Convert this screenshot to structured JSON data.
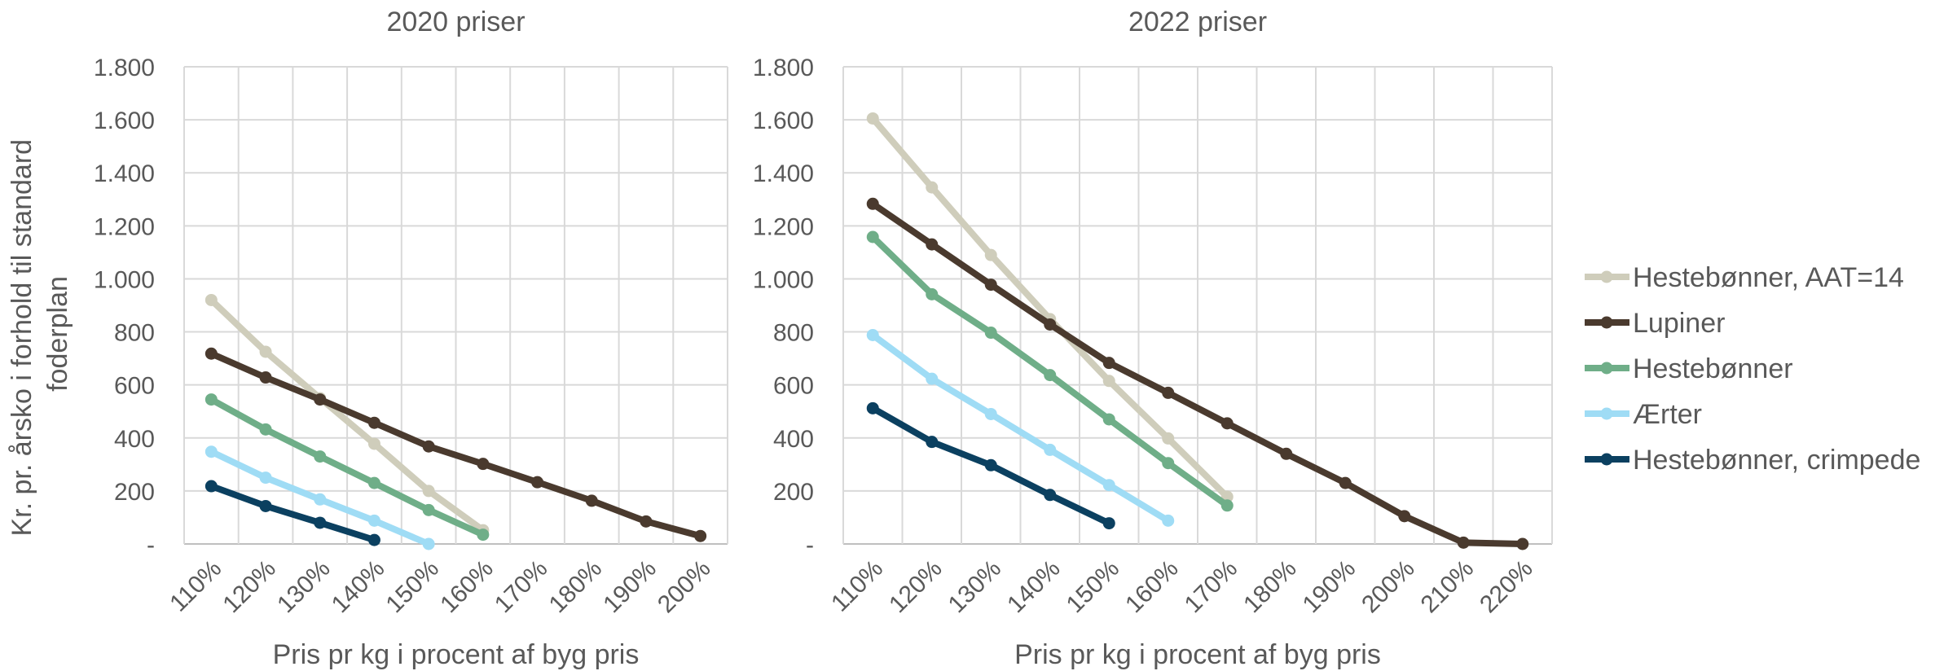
{
  "y_axis_title": "Kr. pr. årsko i forhold til standard foderplan",
  "y_axis_title_lines": [
    "Kr. pr. årsko i forhold til standard",
    "foderplan"
  ],
  "chart_data": [
    {
      "type": "line",
      "title": "2020 priser",
      "xlabel": "Pris pr kg i procent af byg pris",
      "ylabel": "Kr. pr. årsko i forhold til standard foderplan",
      "x_tick_labels": [
        "110%",
        "120%",
        "130%",
        "140%",
        "150%",
        "160%",
        "170%",
        "180%",
        "190%",
        "200%"
      ],
      "y_tick_labels": [
        "-",
        "200",
        "400",
        "600",
        "800",
        "1.000",
        "1.200",
        "1.400",
        "1.600",
        "1.800"
      ],
      "xlim": [
        105,
        205
      ],
      "ylim": [
        0,
        1800
      ],
      "grid": true,
      "series": [
        {
          "name": "Hestebønner, AAT=14",
          "color": "#cfcdbb",
          "points": [
            [
              110,
              920
            ],
            [
              120,
              725
            ],
            [
              130,
              550
            ],
            [
              140,
              378
            ],
            [
              150,
              200
            ],
            [
              160,
              52
            ]
          ]
        },
        {
          "name": "Lupiner",
          "color": "#4a3a2e",
          "points": [
            [
              110,
              718
            ],
            [
              120,
              628
            ],
            [
              130,
              545
            ],
            [
              140,
              457
            ],
            [
              150,
              368
            ],
            [
              160,
              302
            ],
            [
              170,
              233
            ],
            [
              180,
              163
            ],
            [
              190,
              85
            ],
            [
              200,
              30
            ]
          ]
        },
        {
          "name": "Hestebønner",
          "color": "#6fae88",
          "points": [
            [
              110,
              545
            ],
            [
              120,
              432
            ],
            [
              130,
              330
            ],
            [
              140,
              230
            ],
            [
              150,
              128
            ],
            [
              160,
              35
            ]
          ]
        },
        {
          "name": "Ærter",
          "color": "#9fdcf5",
          "points": [
            [
              110,
              348
            ],
            [
              120,
              250
            ],
            [
              130,
              168
            ],
            [
              140,
              88
            ],
            [
              150,
              0
            ]
          ]
        },
        {
          "name": "Hestebønner, crimpede",
          "color": "#0b4060",
          "points": [
            [
              110,
              218
            ],
            [
              120,
              143
            ],
            [
              130,
              80
            ],
            [
              140,
              15
            ]
          ]
        }
      ]
    },
    {
      "type": "line",
      "title": "2022 priser",
      "xlabel": "Pris pr kg i procent af byg pris",
      "ylabel": "",
      "x_tick_labels": [
        "110%",
        "120%",
        "130%",
        "140%",
        "150%",
        "160%",
        "170%",
        "180%",
        "190%",
        "200%",
        "210%",
        "220%"
      ],
      "y_tick_labels": [
        "-",
        "200",
        "400",
        "600",
        "800",
        "1.000",
        "1.200",
        "1.400",
        "1.600",
        "1.800"
      ],
      "xlim": [
        105,
        225
      ],
      "ylim": [
        0,
        1800
      ],
      "grid": true,
      "series": [
        {
          "name": "Hestebønner, AAT=14",
          "color": "#cfcdbb",
          "points": [
            [
              110,
              1605
            ],
            [
              120,
              1345
            ],
            [
              130,
              1090
            ],
            [
              140,
              848
            ],
            [
              150,
              615
            ],
            [
              160,
              398
            ],
            [
              170,
              178
            ]
          ]
        },
        {
          "name": "Lupiner",
          "color": "#4a3a2e",
          "points": [
            [
              110,
              1283
            ],
            [
              120,
              1130
            ],
            [
              130,
              978
            ],
            [
              140,
              828
            ],
            [
              150,
              683
            ],
            [
              160,
              570
            ],
            [
              170,
              455
            ],
            [
              180,
              340
            ],
            [
              190,
              230
            ],
            [
              200,
              105
            ],
            [
              210,
              5
            ],
            [
              220,
              0
            ]
          ]
        },
        {
          "name": "Hestebønner",
          "color": "#6fae88",
          "points": [
            [
              110,
              1158
            ],
            [
              120,
              942
            ],
            [
              130,
              797
            ],
            [
              140,
              637
            ],
            [
              150,
              470
            ],
            [
              160,
              305
            ],
            [
              170,
              145
            ]
          ]
        },
        {
          "name": "Ærter",
          "color": "#9fdcf5",
          "points": [
            [
              110,
              788
            ],
            [
              120,
              623
            ],
            [
              130,
              490
            ],
            [
              140,
              355
            ],
            [
              150,
              222
            ],
            [
              160,
              88
            ]
          ]
        },
        {
          "name": "Hestebønner, crimpede",
          "color": "#0b4060",
          "points": [
            [
              110,
              512
            ],
            [
              120,
              385
            ],
            [
              130,
              297
            ],
            [
              140,
              185
            ],
            [
              150,
              78
            ]
          ]
        }
      ]
    }
  ],
  "legend": {
    "placement": "right",
    "items": [
      {
        "label": "Hestebønner, AAT=14",
        "color": "#cfcdbb"
      },
      {
        "label": "Lupiner",
        "color": "#4a3a2e"
      },
      {
        "label": "Hestebønner",
        "color": "#6fae88"
      },
      {
        "label": "Ærter",
        "color": "#9fdcf5"
      },
      {
        "label": "Hestebønner, crimpede",
        "color": "#0b4060"
      }
    ]
  }
}
